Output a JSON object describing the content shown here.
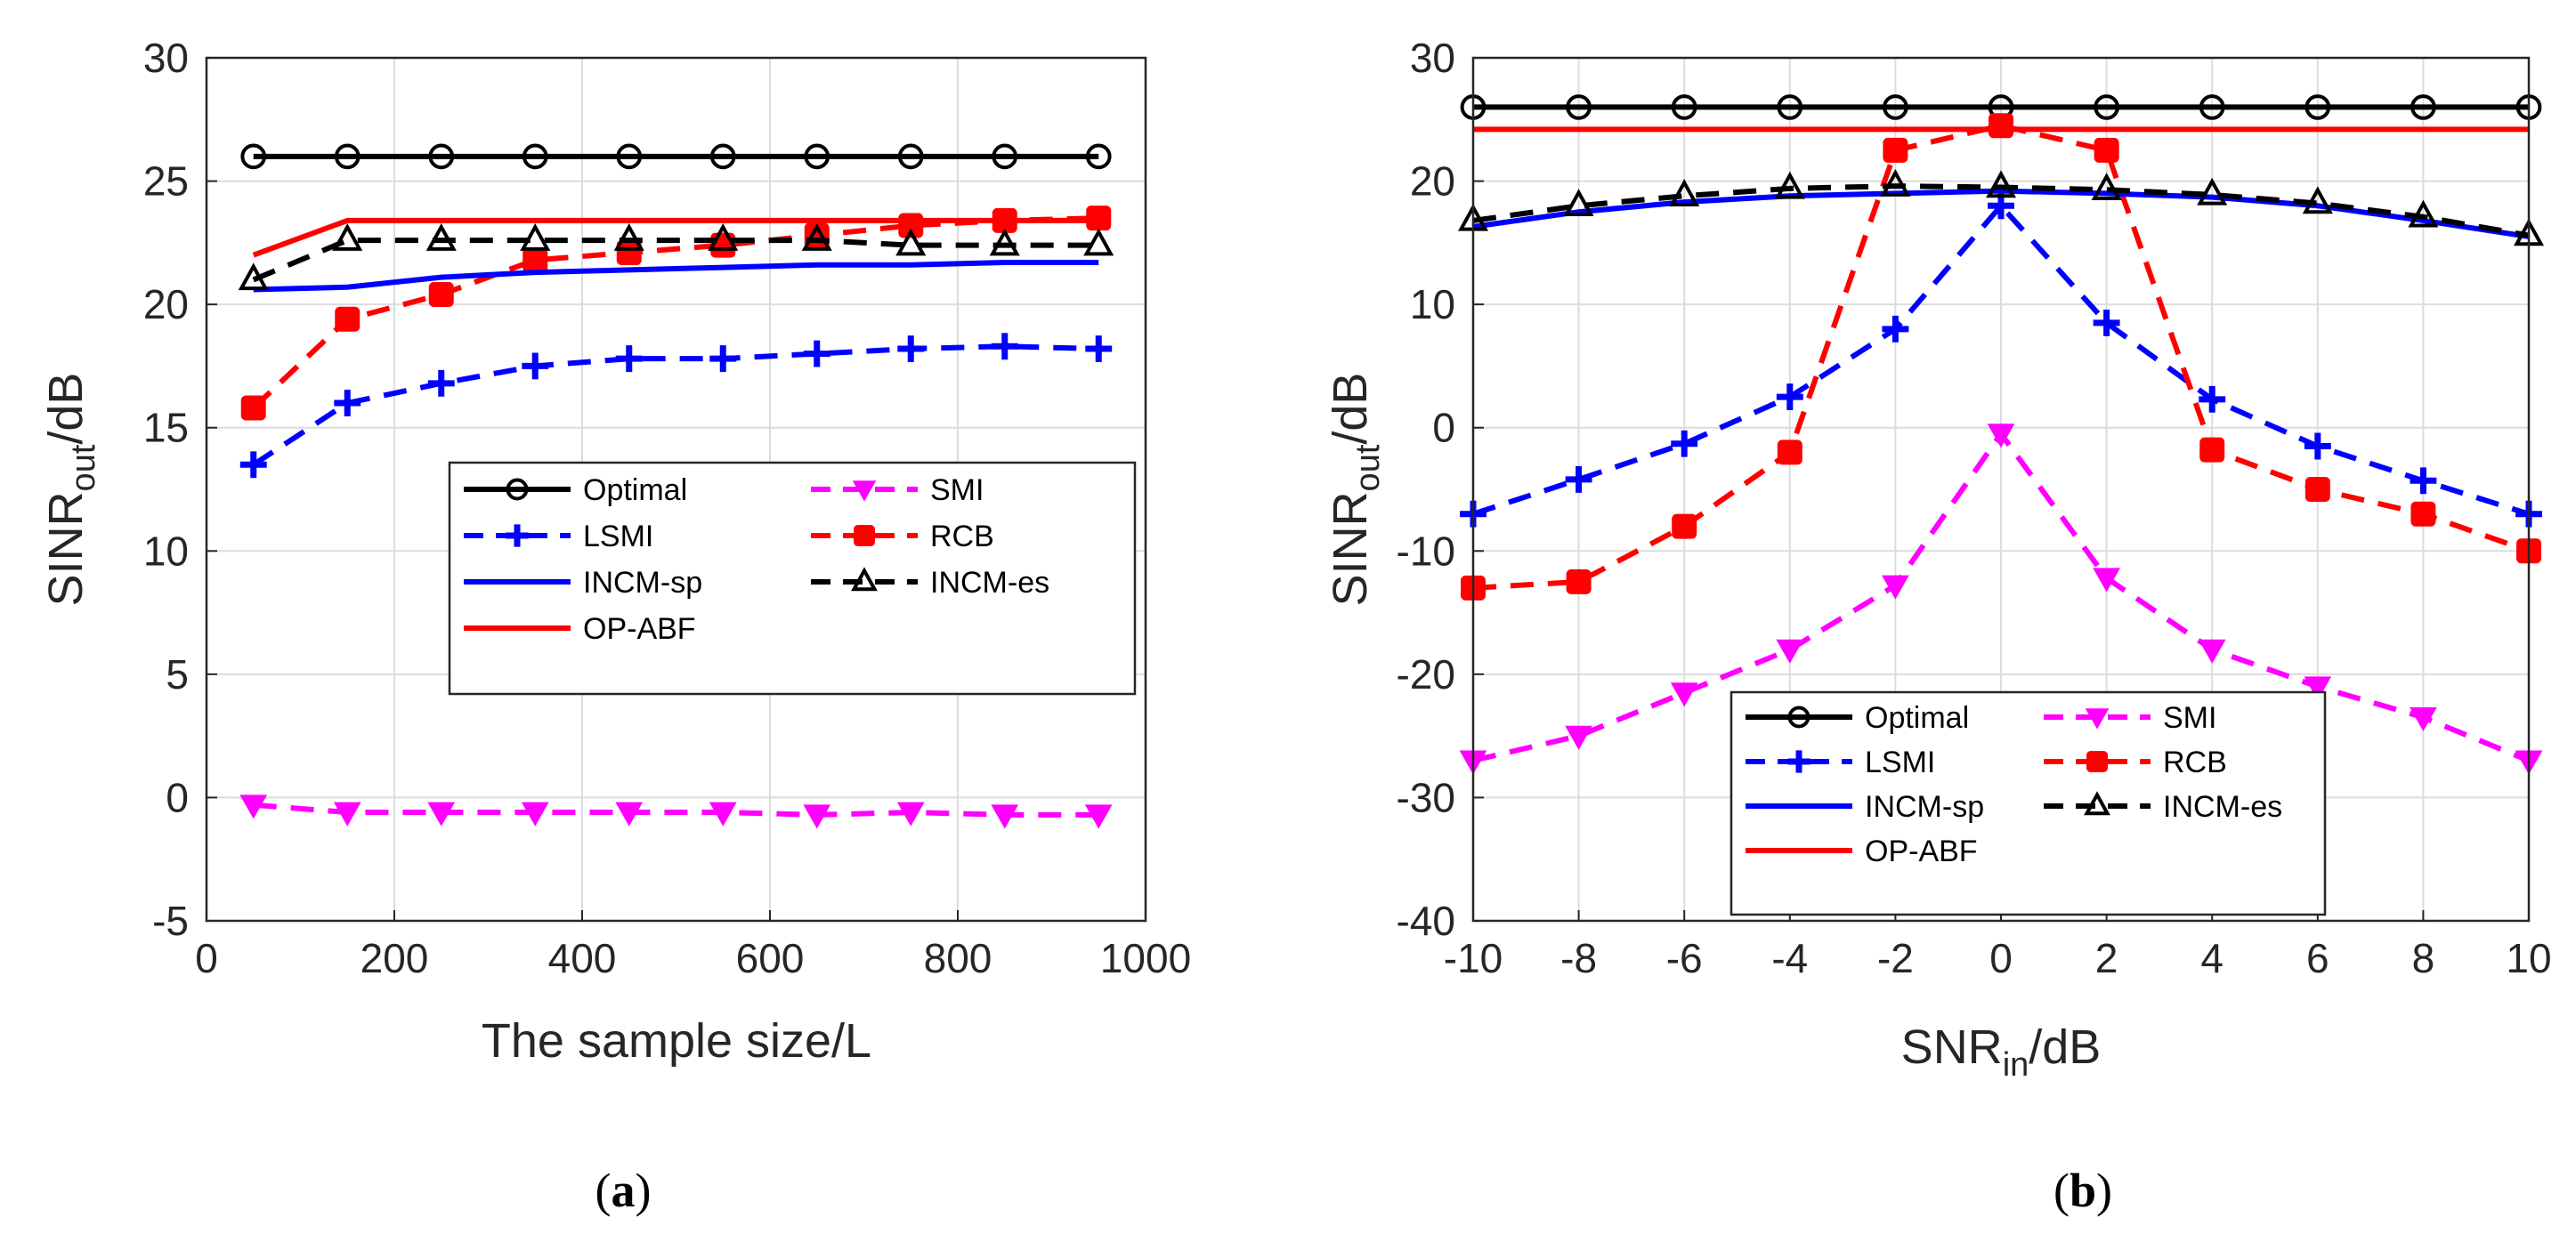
{
  "chart_data": [
    {
      "type": "line",
      "panel": "a",
      "caption": {
        "open": "(",
        "letter": "a",
        "close": ")"
      },
      "xlabel": "The sample size/L",
      "ylabel": {
        "base": "SINR",
        "sub": "out",
        "rest": "/dB"
      },
      "xlim": [
        0,
        1000
      ],
      "ylim": [
        -5,
        30
      ],
      "xticks": [
        0,
        200,
        400,
        600,
        800,
        1000
      ],
      "yticks": [
        -5,
        0,
        5,
        10,
        15,
        20,
        25,
        30
      ],
      "grid": true,
      "legend_position": "center-right",
      "legend_columns": 2,
      "x": [
        50,
        150,
        250,
        350,
        450,
        550,
        650,
        750,
        850,
        950
      ],
      "series": [
        {
          "name": "Optimal",
          "color": "#000000",
          "dash": "solid",
          "marker": "circle",
          "values": [
            26,
            26,
            26,
            26,
            26,
            26,
            26,
            26,
            26,
            26
          ]
        },
        {
          "name": "SMI",
          "color": "#ff00ff",
          "dash": "dashed",
          "marker": "down-triangle",
          "values": [
            -0.3,
            -0.6,
            -0.6,
            -0.6,
            -0.6,
            -0.6,
            -0.7,
            -0.6,
            -0.7,
            -0.7
          ]
        },
        {
          "name": "LSMI",
          "color": "#0000ff",
          "dash": "dashed",
          "marker": "plus",
          "values": [
            13.5,
            16,
            16.8,
            17.5,
            17.8,
            17.8,
            18,
            18.2,
            18.3,
            18.2
          ]
        },
        {
          "name": "RCB",
          "color": "#ff0000",
          "dash": "dashed",
          "marker": "square",
          "values": [
            15.8,
            19.4,
            20.4,
            21.8,
            22.1,
            22.4,
            22.8,
            23.2,
            23.4,
            23.5
          ]
        },
        {
          "name": "INCM-sp",
          "color": "#0000ff",
          "dash": "solid",
          "marker": "none",
          "values": [
            20.6,
            20.7,
            21.1,
            21.3,
            21.4,
            21.5,
            21.6,
            21.6,
            21.7,
            21.7
          ]
        },
        {
          "name": "INCM-es",
          "color": "#000000",
          "dash": "dashed",
          "marker": "triangle",
          "values": [
            21,
            22.6,
            22.6,
            22.6,
            22.6,
            22.6,
            22.6,
            22.4,
            22.4,
            22.4
          ]
        },
        {
          "name": "OP-ABF",
          "color": "#ff0000",
          "dash": "solid",
          "marker": "none",
          "values": [
            22,
            23.4,
            23.4,
            23.4,
            23.4,
            23.4,
            23.4,
            23.4,
            23.4,
            23.4
          ]
        }
      ]
    },
    {
      "type": "line",
      "panel": "b",
      "caption": {
        "open": "(",
        "letter": "b",
        "close": ")"
      },
      "xlabel": {
        "base": "SNR",
        "sub": "in",
        "rest": "/dB"
      },
      "ylabel": {
        "base": "SINR",
        "sub": "out",
        "rest": "/dB"
      },
      "xlim": [
        -10,
        10
      ],
      "ylim": [
        -40,
        30
      ],
      "xticks": [
        -10,
        -8,
        -6,
        -4,
        -2,
        0,
        2,
        4,
        6,
        8,
        10
      ],
      "yticks": [
        -40,
        -30,
        -20,
        -10,
        0,
        10,
        20,
        30
      ],
      "grid": true,
      "legend_position": "bottom-center",
      "legend_columns": 2,
      "x": [
        -10,
        -8,
        -6,
        -4,
        -2,
        0,
        2,
        4,
        6,
        8,
        10
      ],
      "series": [
        {
          "name": "Optimal",
          "color": "#000000",
          "dash": "solid",
          "marker": "circle",
          "values": [
            26,
            26,
            26,
            26,
            26,
            26,
            26,
            26,
            26,
            26,
            26
          ]
        },
        {
          "name": "SMI",
          "color": "#ff00ff",
          "dash": "dashed",
          "marker": "down-triangle",
          "values": [
            -27,
            -25,
            -21.5,
            -18,
            -12.8,
            -0.5,
            -12.2,
            -18,
            -21,
            -23.5,
            -27
          ]
        },
        {
          "name": "LSMI",
          "color": "#0000ff",
          "dash": "dashed",
          "marker": "plus",
          "values": [
            -7,
            -4.2,
            -1.3,
            2.5,
            8,
            18,
            8.5,
            2.3,
            -1.5,
            -4.3,
            -7
          ]
        },
        {
          "name": "RCB",
          "color": "#ff0000",
          "dash": "dashed",
          "marker": "square",
          "values": [
            -13,
            -12.5,
            -8,
            -2,
            22.5,
            24.5,
            22.5,
            -1.8,
            -5,
            -7,
            -10
          ]
        },
        {
          "name": "INCM-sp",
          "color": "#0000ff",
          "dash": "solid",
          "marker": "none",
          "values": [
            16.3,
            17.5,
            18.3,
            18.8,
            19,
            19.2,
            19,
            18.7,
            18,
            16.8,
            15.5
          ]
        },
        {
          "name": "INCM-es",
          "color": "#000000",
          "dash": "dashed",
          "marker": "triangle",
          "values": [
            16.8,
            18,
            18.8,
            19.4,
            19.6,
            19.5,
            19.3,
            18.9,
            18.2,
            17.1,
            15.6
          ]
        },
        {
          "name": "OP-ABF",
          "color": "#ff0000",
          "dash": "solid",
          "marker": "none",
          "values": [
            24.2,
            24.2,
            24.2,
            24.2,
            24.2,
            24.2,
            24.2,
            24.2,
            24.2,
            24.2,
            24.2
          ]
        }
      ]
    }
  ]
}
